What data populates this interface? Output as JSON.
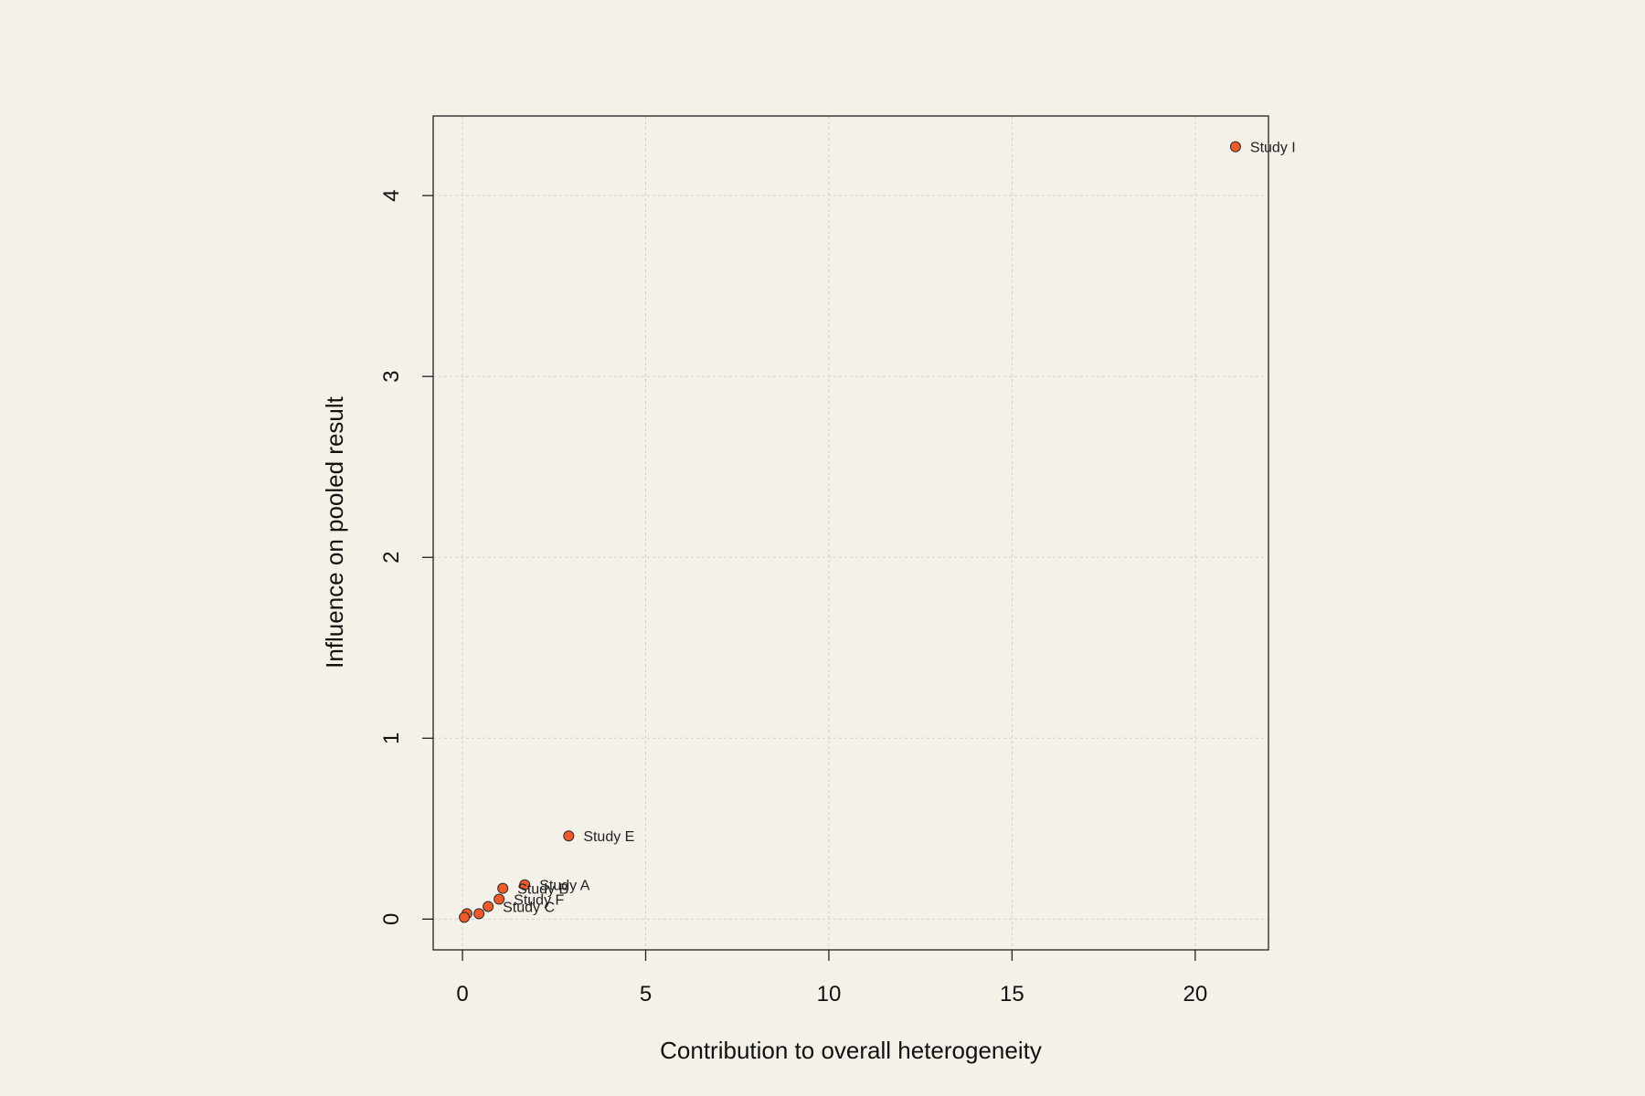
{
  "chart_data": {
    "type": "scatter",
    "title": "",
    "xlabel": "Contribution to overall heterogeneity",
    "ylabel": "Influence on pooled result",
    "xlim": [
      -0.8,
      22.0
    ],
    "ylim": [
      -0.17,
      4.44
    ],
    "x_ticks": [
      0,
      5,
      10,
      15,
      20
    ],
    "y_ticks": [
      0,
      1,
      2,
      3,
      4
    ],
    "grid": true,
    "point_color": "#f05a28",
    "point_stroke": "#2a2a2a",
    "points": [
      {
        "x": 21.1,
        "y": 4.27,
        "label": "Study I"
      },
      {
        "x": 2.9,
        "y": 0.46,
        "label": "Study E"
      },
      {
        "x": 1.7,
        "y": 0.19,
        "label": "Study A"
      },
      {
        "x": 1.1,
        "y": 0.17,
        "label": "Study B"
      },
      {
        "x": 1.0,
        "y": 0.11,
        "label": "Study F"
      },
      {
        "x": 0.7,
        "y": 0.07,
        "label": "Study C"
      },
      {
        "x": 0.45,
        "y": 0.03,
        "label": ""
      },
      {
        "x": 0.12,
        "y": 0.03,
        "label": ""
      },
      {
        "x": 0.05,
        "y": 0.01,
        "label": ""
      }
    ]
  }
}
